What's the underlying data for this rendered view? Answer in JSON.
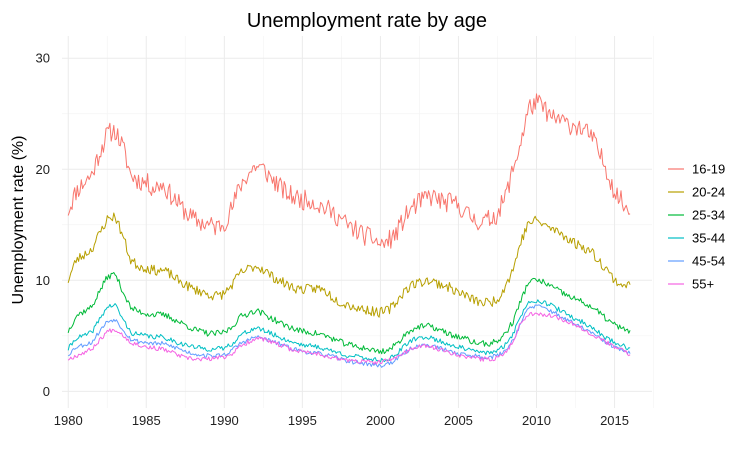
{
  "chart_data": {
    "type": "line",
    "title": "Unemployment rate by age",
    "xlabel": "",
    "ylabel": "Unemployment rate (%)",
    "xlim": [
      1979.6,
      2017.4
    ],
    "ylim": [
      -1.5,
      32
    ],
    "x_ticks": [
      1980,
      1985,
      1990,
      1995,
      2000,
      2005,
      2010,
      2015
    ],
    "x_tick_labels": [
      "1980",
      "1985",
      "1990",
      "1995",
      "2000",
      "2005",
      "2010",
      "2015"
    ],
    "y_ticks": [
      0,
      10,
      20,
      30
    ],
    "y_tick_labels": [
      "0",
      "10",
      "20",
      "30"
    ],
    "grid": true,
    "legend": "right",
    "series": [
      {
        "name": "16-19",
        "color": "#F8766D",
        "noise": 0.9,
        "seed": 11,
        "x": [
          1980.0,
          1980.5,
          1981.0,
          1981.5,
          1982.0,
          1982.5,
          1983.0,
          1983.5,
          1984.0,
          1984.5,
          1985.0,
          1985.5,
          1986.0,
          1986.5,
          1987.0,
          1987.5,
          1988.0,
          1988.5,
          1989.0,
          1989.5,
          1990.0,
          1990.5,
          1991.0,
          1991.5,
          1992.0,
          1992.5,
          1993.0,
          1993.5,
          1994.0,
          1994.5,
          1995.0,
          1995.5,
          1996.0,
          1996.5,
          1997.0,
          1997.5,
          1998.0,
          1998.5,
          1999.0,
          1999.5,
          2000.0,
          2000.5,
          2001.0,
          2001.5,
          2002.0,
          2002.5,
          2003.0,
          2003.5,
          2004.0,
          2004.5,
          2005.0,
          2005.5,
          2006.0,
          2006.5,
          2007.0,
          2007.5,
          2008.0,
          2008.5,
          2009.0,
          2009.5,
          2010.0,
          2010.5,
          2011.0,
          2011.5,
          2012.0,
          2012.5,
          2013.0,
          2013.5,
          2014.0,
          2014.5,
          2015.0,
          2015.5,
          2016.0
        ],
        "y": [
          16.3,
          18.0,
          18.8,
          19.5,
          21.5,
          23.2,
          23.5,
          22.0,
          19.5,
          19.0,
          18.8,
          18.3,
          18.7,
          17.8,
          17.0,
          16.2,
          15.5,
          15.2,
          15.0,
          14.8,
          15.2,
          16.5,
          18.5,
          19.5,
          20.3,
          20.0,
          19.2,
          18.5,
          17.8,
          17.5,
          17.2,
          17.3,
          16.8,
          16.5,
          16.0,
          15.5,
          14.8,
          14.5,
          14.0,
          13.8,
          13.2,
          13.5,
          14.2,
          15.5,
          16.5,
          17.0,
          17.5,
          17.5,
          17.0,
          17.0,
          16.8,
          16.0,
          15.5,
          15.2,
          15.5,
          16.0,
          17.5,
          20.0,
          22.5,
          25.5,
          26.0,
          25.5,
          24.5,
          24.5,
          24.0,
          24.0,
          23.5,
          23.0,
          21.5,
          20.0,
          18.0,
          17.0,
          16.0
        ]
      },
      {
        "name": "20-24",
        "color": "#B79F00",
        "noise": 0.45,
        "seed": 23,
        "x": [
          1980.0,
          1980.5,
          1981.0,
          1981.5,
          1982.0,
          1982.5,
          1983.0,
          1983.5,
          1984.0,
          1984.5,
          1985.0,
          1985.5,
          1986.0,
          1986.5,
          1987.0,
          1987.5,
          1988.0,
          1988.5,
          1989.0,
          1989.5,
          1990.0,
          1990.5,
          1991.0,
          1991.5,
          1992.0,
          1992.5,
          1993.0,
          1993.5,
          1994.0,
          1994.5,
          1995.0,
          1995.5,
          1996.0,
          1996.5,
          1997.0,
          1997.5,
          1998.0,
          1998.5,
          1999.0,
          1999.5,
          2000.0,
          2000.5,
          2001.0,
          2001.5,
          2002.0,
          2002.5,
          2003.0,
          2003.5,
          2004.0,
          2004.5,
          2005.0,
          2005.5,
          2006.0,
          2006.5,
          2007.0,
          2007.5,
          2008.0,
          2008.5,
          2009.0,
          2009.5,
          2010.0,
          2010.5,
          2011.0,
          2011.5,
          2012.0,
          2012.5,
          2013.0,
          2013.5,
          2014.0,
          2014.5,
          2015.0,
          2015.5,
          2016.0
        ],
        "y": [
          10.0,
          11.8,
          12.3,
          12.8,
          14.2,
          15.5,
          15.8,
          14.0,
          11.8,
          11.3,
          11.1,
          10.9,
          10.9,
          10.6,
          10.0,
          9.6,
          9.2,
          9.0,
          8.7,
          8.6,
          8.8,
          9.6,
          10.6,
          11.0,
          11.3,
          11.0,
          10.4,
          10.0,
          9.6,
          9.3,
          9.2,
          9.2,
          9.3,
          9.0,
          8.4,
          8.0,
          7.8,
          7.5,
          7.4,
          7.2,
          7.1,
          7.3,
          8.0,
          9.0,
          9.6,
          9.8,
          10.0,
          9.8,
          9.6,
          9.3,
          8.9,
          8.6,
          8.2,
          8.0,
          8.0,
          8.3,
          9.5,
          11.0,
          13.5,
          15.2,
          15.4,
          15.0,
          14.6,
          14.3,
          13.8,
          13.3,
          13.0,
          12.6,
          11.8,
          11.0,
          10.0,
          9.6,
          9.6
        ]
      },
      {
        "name": "25-34",
        "color": "#00BA38",
        "noise": 0.28,
        "seed": 37,
        "x": [
          1980.0,
          1980.5,
          1981.0,
          1981.5,
          1982.0,
          1982.5,
          1983.0,
          1983.5,
          1984.0,
          1984.5,
          1985.0,
          1985.5,
          1986.0,
          1986.5,
          1987.0,
          1987.5,
          1988.0,
          1988.5,
          1989.0,
          1989.5,
          1990.0,
          1990.5,
          1991.0,
          1991.5,
          1992.0,
          1992.5,
          1993.0,
          1993.5,
          1994.0,
          1994.5,
          1995.0,
          1995.5,
          1996.0,
          1996.5,
          1997.0,
          1997.5,
          1998.0,
          1998.5,
          1999.0,
          1999.5,
          2000.0,
          2000.5,
          2001.0,
          2001.5,
          2002.0,
          2002.5,
          2003.0,
          2003.5,
          2004.0,
          2004.5,
          2005.0,
          2005.5,
          2006.0,
          2006.5,
          2007.0,
          2007.5,
          2008.0,
          2008.5,
          2009.0,
          2009.5,
          2010.0,
          2010.5,
          2011.0,
          2011.5,
          2012.0,
          2012.5,
          2013.0,
          2013.5,
          2014.0,
          2014.5,
          2015.0,
          2015.5,
          2016.0
        ],
        "y": [
          5.4,
          6.8,
          7.2,
          7.6,
          9.0,
          10.3,
          10.6,
          9.0,
          7.5,
          7.2,
          7.0,
          6.9,
          6.9,
          6.7,
          6.3,
          6.0,
          5.6,
          5.4,
          5.2,
          5.2,
          5.3,
          5.8,
          6.7,
          7.0,
          7.3,
          7.0,
          6.6,
          6.2,
          5.9,
          5.6,
          5.4,
          5.3,
          5.2,
          5.0,
          4.7,
          4.4,
          4.2,
          4.0,
          3.9,
          3.7,
          3.6,
          3.7,
          4.2,
          5.0,
          5.6,
          5.8,
          5.9,
          5.7,
          5.4,
          5.1,
          4.9,
          4.7,
          4.4,
          4.3,
          4.3,
          4.5,
          5.2,
          6.3,
          8.2,
          9.9,
          10.0,
          9.8,
          9.4,
          9.0,
          8.6,
          8.3,
          8.0,
          7.6,
          7.1,
          6.5,
          6.0,
          5.6,
          5.5
        ]
      },
      {
        "name": "35-44",
        "color": "#00BFC4",
        "noise": 0.22,
        "seed": 41,
        "x": [
          1980.0,
          1980.5,
          1981.0,
          1981.5,
          1982.0,
          1982.5,
          1983.0,
          1983.5,
          1984.0,
          1984.5,
          1985.0,
          1985.5,
          1986.0,
          1986.5,
          1987.0,
          1987.5,
          1988.0,
          1988.5,
          1989.0,
          1989.5,
          1990.0,
          1990.5,
          1991.0,
          1991.5,
          1992.0,
          1992.5,
          1993.0,
          1993.5,
          1994.0,
          1994.5,
          1995.0,
          1995.5,
          1996.0,
          1996.5,
          1997.0,
          1997.5,
          1998.0,
          1998.5,
          1999.0,
          1999.5,
          2000.0,
          2000.5,
          2001.0,
          2001.5,
          2002.0,
          2002.5,
          2003.0,
          2003.5,
          2004.0,
          2004.5,
          2005.0,
          2005.5,
          2006.0,
          2006.5,
          2007.0,
          2007.5,
          2008.0,
          2008.5,
          2009.0,
          2009.5,
          2010.0,
          2010.5,
          2011.0,
          2011.5,
          2012.0,
          2012.5,
          2013.0,
          2013.5,
          2014.0,
          2014.5,
          2015.0,
          2015.5,
          2016.0
        ],
        "y": [
          3.8,
          4.8,
          5.0,
          5.3,
          6.5,
          7.6,
          7.8,
          6.5,
          5.3,
          5.1,
          5.0,
          4.9,
          4.9,
          4.7,
          4.4,
          4.2,
          4.0,
          3.9,
          3.8,
          3.8,
          3.9,
          4.3,
          5.0,
          5.4,
          5.7,
          5.5,
          5.2,
          4.9,
          4.6,
          4.4,
          4.2,
          4.1,
          4.0,
          3.8,
          3.6,
          3.4,
          3.2,
          3.1,
          3.0,
          2.9,
          2.8,
          2.9,
          3.3,
          4.0,
          4.6,
          4.8,
          4.9,
          4.7,
          4.4,
          4.2,
          4.0,
          3.8,
          3.6,
          3.5,
          3.5,
          3.6,
          4.2,
          5.2,
          6.8,
          8.1,
          8.2,
          8.0,
          7.7,
          7.3,
          6.9,
          6.5,
          6.2,
          5.8,
          5.3,
          4.8,
          4.4,
          4.1,
          3.9
        ]
      },
      {
        "name": "45-54",
        "color": "#619CFF",
        "noise": 0.2,
        "seed": 53,
        "x": [
          1980.0,
          1980.5,
          1981.0,
          1981.5,
          1982.0,
          1982.5,
          1983.0,
          1983.5,
          1984.0,
          1984.5,
          1985.0,
          1985.5,
          1986.0,
          1986.5,
          1987.0,
          1987.5,
          1988.0,
          1988.5,
          1989.0,
          1989.5,
          1990.0,
          1990.5,
          1991.0,
          1991.5,
          1992.0,
          1992.5,
          1993.0,
          1993.5,
          1994.0,
          1994.5,
          1995.0,
          1995.5,
          1996.0,
          1996.5,
          1997.0,
          1997.5,
          1998.0,
          1998.5,
          1999.0,
          1999.5,
          2000.0,
          2000.5,
          2001.0,
          2001.5,
          2002.0,
          2002.5,
          2003.0,
          2003.5,
          2004.0,
          2004.5,
          2005.0,
          2005.5,
          2006.0,
          2006.5,
          2007.0,
          2007.5,
          2008.0,
          2008.5,
          2009.0,
          2009.5,
          2010.0,
          2010.5,
          2011.0,
          2011.5,
          2012.0,
          2012.5,
          2013.0,
          2013.5,
          2014.0,
          2014.5,
          2015.0,
          2015.5,
          2016.0
        ],
        "y": [
          3.3,
          4.0,
          4.2,
          4.4,
          5.4,
          6.3,
          6.5,
          5.6,
          4.7,
          4.5,
          4.4,
          4.3,
          4.3,
          4.1,
          3.9,
          3.6,
          3.4,
          3.3,
          3.2,
          3.2,
          3.3,
          3.7,
          4.3,
          4.6,
          4.9,
          4.8,
          4.5,
          4.3,
          4.0,
          3.8,
          3.6,
          3.5,
          3.4,
          3.3,
          3.1,
          2.9,
          2.7,
          2.6,
          2.5,
          2.4,
          2.3,
          2.5,
          2.8,
          3.4,
          3.9,
          4.1,
          4.2,
          4.0,
          3.8,
          3.6,
          3.4,
          3.3,
          3.2,
          3.1,
          3.1,
          3.2,
          3.7,
          4.6,
          6.2,
          7.5,
          7.7,
          7.5,
          7.2,
          6.8,
          6.4,
          6.0,
          5.7,
          5.3,
          4.8,
          4.4,
          4.0,
          3.7,
          3.4
        ]
      },
      {
        "name": "55+",
        "color": "#F564E3",
        "noise": 0.2,
        "seed": 67,
        "x": [
          1980.0,
          1980.5,
          1981.0,
          1981.5,
          1982.0,
          1982.5,
          1983.0,
          1983.5,
          1984.0,
          1984.5,
          1985.0,
          1985.5,
          1986.0,
          1986.5,
          1987.0,
          1987.5,
          1988.0,
          1988.5,
          1989.0,
          1989.5,
          1990.0,
          1990.5,
          1991.0,
          1991.5,
          1992.0,
          1992.5,
          1993.0,
          1993.5,
          1994.0,
          1994.5,
          1995.0,
          1995.5,
          1996.0,
          1996.5,
          1997.0,
          1997.5,
          1998.0,
          1998.5,
          1999.0,
          1999.5,
          2000.0,
          2000.5,
          2001.0,
          2001.5,
          2002.0,
          2002.5,
          2003.0,
          2003.5,
          2004.0,
          2004.5,
          2005.0,
          2005.5,
          2006.0,
          2006.5,
          2007.0,
          2007.5,
          2008.0,
          2008.5,
          2009.0,
          2009.5,
          2010.0,
          2010.5,
          2011.0,
          2011.5,
          2012.0,
          2012.5,
          2013.0,
          2013.5,
          2014.0,
          2014.5,
          2015.0,
          2015.5,
          2016.0
        ],
        "y": [
          2.9,
          3.2,
          3.5,
          3.8,
          4.6,
          5.4,
          5.6,
          5.1,
          4.4,
          4.2,
          4.0,
          3.9,
          3.8,
          3.6,
          3.3,
          3.0,
          2.9,
          2.9,
          2.9,
          3.0,
          3.1,
          3.4,
          4.0,
          4.4,
          4.8,
          4.7,
          4.4,
          4.2,
          3.9,
          3.7,
          3.6,
          3.5,
          3.4,
          3.2,
          3.0,
          2.9,
          2.8,
          2.7,
          2.7,
          2.6,
          2.6,
          2.8,
          3.0,
          3.5,
          3.8,
          4.0,
          4.1,
          3.9,
          3.7,
          3.5,
          3.3,
          3.1,
          3.0,
          2.9,
          2.9,
          3.0,
          3.5,
          4.5,
          6.2,
          7.0,
          7.0,
          6.9,
          6.8,
          6.6,
          6.3,
          6.0,
          5.6,
          5.2,
          4.8,
          4.4,
          4.0,
          3.7,
          3.3
        ]
      }
    ]
  }
}
